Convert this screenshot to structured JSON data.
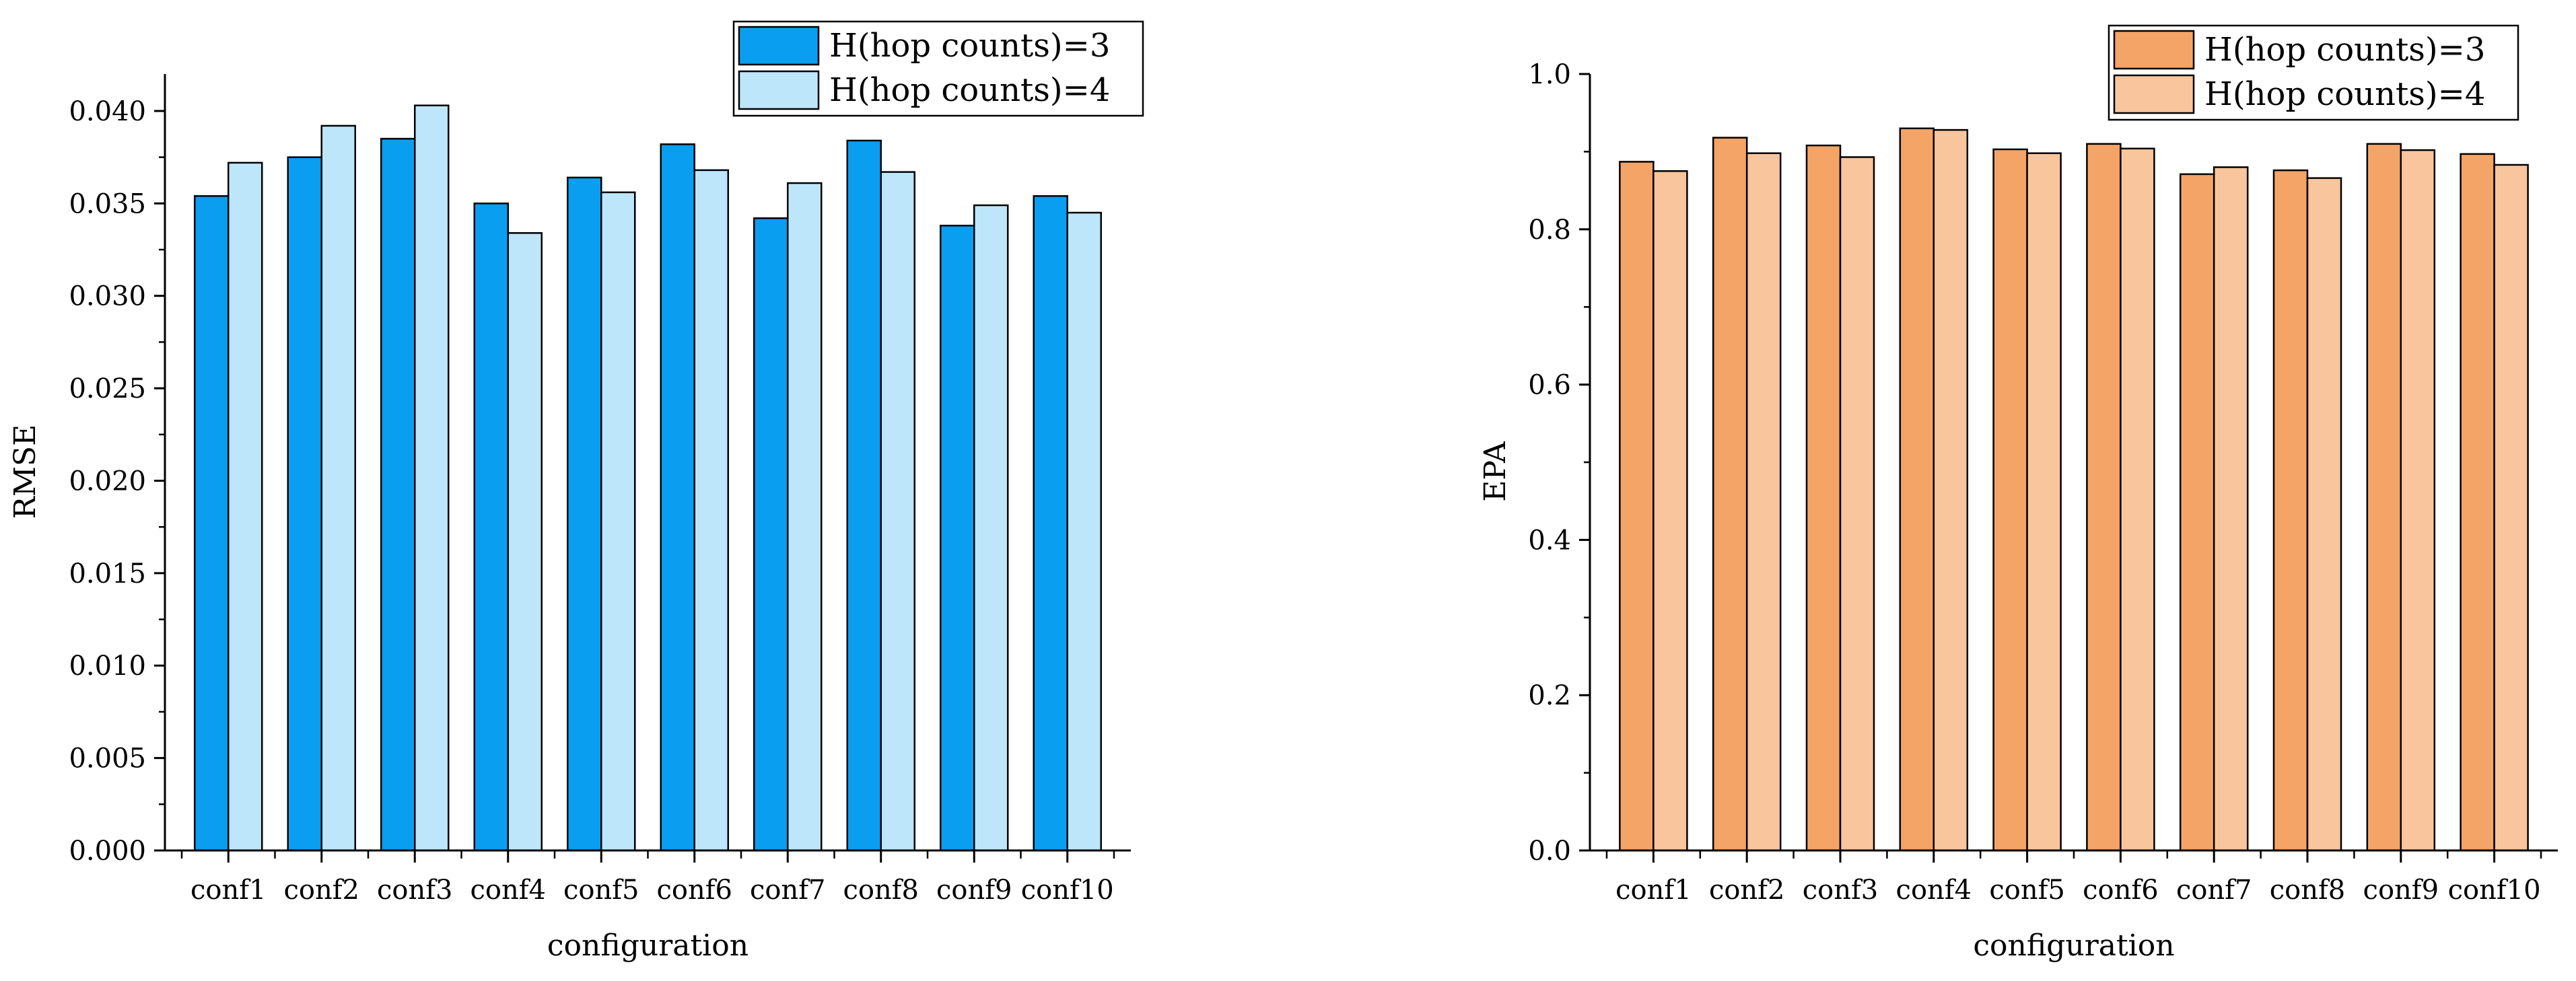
{
  "chart_data": [
    {
      "type": "bar",
      "categories": [
        "conf1",
        "conf2",
        "conf3",
        "conf4",
        "conf5",
        "conf6",
        "conf7",
        "conf8",
        "conf9",
        "conf10"
      ],
      "series": [
        {
          "name": "H(hop counts)=3",
          "values": [
            0.0354,
            0.0375,
            0.0385,
            0.035,
            0.0364,
            0.0382,
            0.0342,
            0.0384,
            0.0338,
            0.0354
          ]
        },
        {
          "name": "H(hop counts)=4",
          "values": [
            0.0372,
            0.0392,
            0.0403,
            0.0334,
            0.0356,
            0.0368,
            0.0361,
            0.0367,
            0.0349,
            0.0345
          ]
        }
      ],
      "colors": [
        "#0a9ef0",
        "#bde6fb"
      ],
      "xlabel": "configuration",
      "ylabel": "RMSE",
      "ylim": [
        0,
        0.042
      ],
      "yticks": [
        0,
        0.005,
        0.01,
        0.015,
        0.02,
        0.025,
        0.03,
        0.035,
        0.04
      ],
      "ytick_labels": [
        "0.000",
        "0.005",
        "0.010",
        "0.015",
        "0.020",
        "0.025",
        "0.030",
        "0.035",
        "0.040"
      ],
      "legend_position": "top-right"
    },
    {
      "type": "bar",
      "categories": [
        "conf1",
        "conf2",
        "conf3",
        "conf4",
        "conf5",
        "conf6",
        "conf7",
        "conf8",
        "conf9",
        "conf10"
      ],
      "series": [
        {
          "name": "H(hop counts)=3",
          "values": [
            0.887,
            0.918,
            0.908,
            0.93,
            0.903,
            0.91,
            0.871,
            0.876,
            0.91,
            0.897
          ]
        },
        {
          "name": "H(hop counts)=4",
          "values": [
            0.875,
            0.898,
            0.893,
            0.928,
            0.898,
            0.904,
            0.88,
            0.866,
            0.902,
            0.883
          ]
        }
      ],
      "colors": [
        "#f4a466",
        "#f9c59c"
      ],
      "xlabel": "configuration",
      "ylabel": "EPA",
      "ylim": [
        0,
        1.0
      ],
      "yticks": [
        0,
        0.2,
        0.4,
        0.6,
        0.8,
        1.0
      ],
      "ytick_labels": [
        "0.0",
        "0.2",
        "0.4",
        "0.6",
        "0.8",
        "1.0"
      ],
      "legend_position": "top-right"
    }
  ]
}
